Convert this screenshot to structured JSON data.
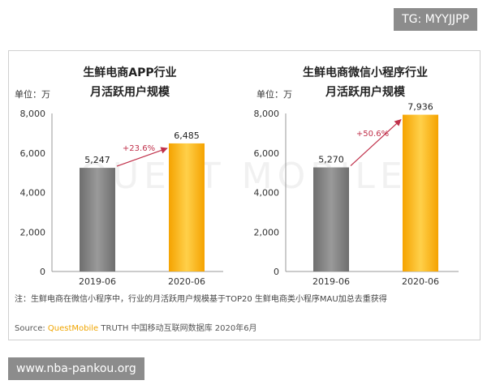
{
  "top_tag": "TG: MYYJJPP",
  "bottom_tag": "www.nba-pankou.org",
  "background_watermark": "QUEST MOBILE",
  "note": "注：生鲜电商在微信小程序中，行业的月活跃用户规模基于TOP20 生鲜电商类小程序MAU加总去重获得",
  "source": {
    "prefix": "Source: ",
    "brand": "QuestMobile",
    "rest": " TRUTH 中国移动互联网数据库 2020年6月"
  },
  "colors": {
    "bar_2019": "#7f7f7f",
    "bar_2020": "#fbb81f",
    "arrow": "#c0304a",
    "growth_text": "#c0304a"
  },
  "chart_data": [
    {
      "type": "bar",
      "title_lines": [
        "生鲜电商APP行业",
        "月活跃用户规模"
      ],
      "unit": "单位：万",
      "categories": [
        "2019-06",
        "2020-06"
      ],
      "values": [
        5247,
        6485
      ],
      "value_labels": [
        "5,247",
        "6,485"
      ],
      "growth_label": "+23.6%",
      "ylim": [
        0,
        8000
      ],
      "yticks": [
        0,
        2000,
        4000,
        6000,
        8000
      ],
      "ytick_labels": [
        "0",
        "2,000",
        "4,000",
        "6,000",
        "8,000"
      ]
    },
    {
      "type": "bar",
      "title_lines": [
        "生鲜电商微信小程序行业",
        "月活跃用户规模"
      ],
      "unit": "单位：万",
      "categories": [
        "2019-06",
        "2020-06"
      ],
      "values": [
        5270,
        7936
      ],
      "value_labels": [
        "5,270",
        "7,936"
      ],
      "growth_label": "+50.6%",
      "ylim": [
        0,
        8000
      ],
      "yticks": [
        0,
        2000,
        4000,
        6000,
        8000
      ],
      "ytick_labels": [
        "0",
        "2,000",
        "4,000",
        "6,000",
        "8,000"
      ]
    }
  ]
}
